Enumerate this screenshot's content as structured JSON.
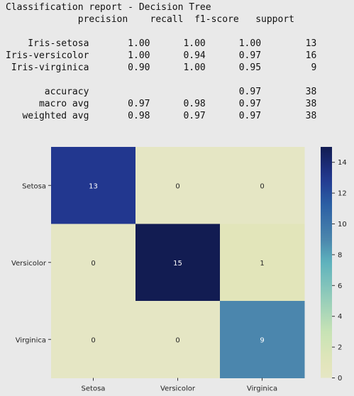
{
  "report": {
    "title": "Classification report - Decision Tree",
    "lines": [
      "             precision    recall  f1-score   support",
      "",
      "    Iris-setosa       1.00      1.00      1.00        13",
      "Iris-versicolor       1.00      0.94      0.97        16",
      " Iris-virginica       0.90      1.00      0.95         9",
      "",
      "       accuracy                           0.97        38",
      "      macro avg       0.97      0.98      0.97        38",
      "   weighted avg       0.98      0.97      0.97        38"
    ]
  },
  "chart_data": {
    "type": "heatmap",
    "title": "",
    "xlabel": "",
    "ylabel": "",
    "x_categories": [
      "Setosa",
      "Versicolor",
      "Virginica"
    ],
    "y_categories": [
      "Setosa",
      "Versicolor",
      "Virginica"
    ],
    "values": [
      [
        13,
        0,
        0
      ],
      [
        0,
        15,
        1
      ],
      [
        0,
        0,
        9
      ]
    ],
    "colorscale": "YlGnBu",
    "vmin": 0,
    "vmax": 15,
    "colorbar_ticks": [
      0,
      2,
      4,
      6,
      8,
      10,
      12,
      14
    ],
    "grid": false,
    "legend": "colorbar-right"
  }
}
